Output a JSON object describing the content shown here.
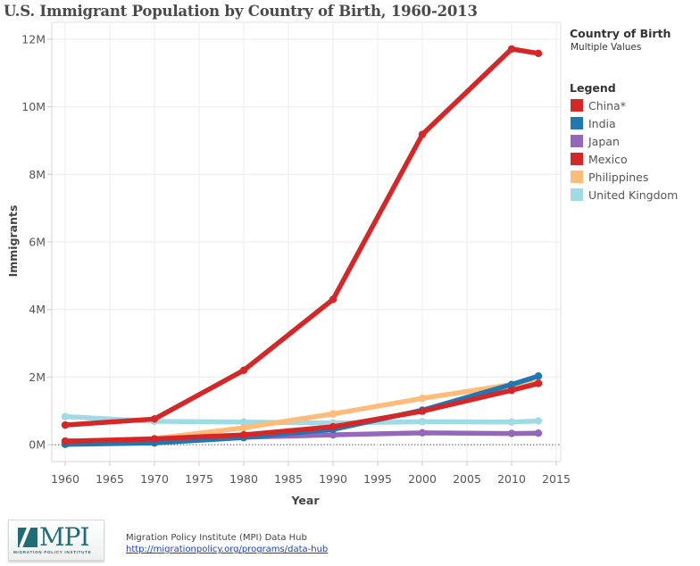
{
  "chart_data": {
    "type": "line",
    "title": "U.S. Immigrant Population by Country of Birth, 1960-2013",
    "xlabel": "Year",
    "ylabel": "Immigrants",
    "xlim": [
      1958.5,
      2015.5
    ],
    "ylim": [
      -0.5,
      12.5
    ],
    "x_ticks": [
      1960,
      1965,
      1970,
      1975,
      1980,
      1985,
      1990,
      1995,
      2000,
      2005,
      2010,
      2015
    ],
    "y_ticks": [
      0,
      2,
      4,
      6,
      8,
      10,
      12
    ],
    "y_tick_labels": [
      "0M",
      "2M",
      "4M",
      "6M",
      "8M",
      "10M",
      "12M"
    ],
    "y_unit": "millions",
    "grid": true,
    "zero_line": "dotted",
    "legend_placement": "right",
    "x": [
      1960,
      1970,
      1980,
      1990,
      2000,
      2010,
      2013
    ],
    "series": [
      {
        "name": "United Kingdom",
        "color": "#9fdae5",
        "values": [
          0.83,
          0.69,
          0.67,
          0.64,
          0.68,
          0.67,
          0.7
        ]
      },
      {
        "name": "Japan",
        "color": "#9467bd",
        "values": [
          0.11,
          0.12,
          0.22,
          0.29,
          0.35,
          0.33,
          0.34
        ]
      },
      {
        "name": "Philippines",
        "color": "#ffbb78",
        "values": [
          0.1,
          0.18,
          0.5,
          0.91,
          1.37,
          1.78,
          1.84
        ]
      },
      {
        "name": "India",
        "color": "#1f77b4",
        "values": [
          0.01,
          0.05,
          0.21,
          0.45,
          1.02,
          1.78,
          2.03
        ]
      },
      {
        "name": "China*",
        "color": "#d62728",
        "values": [
          0.1,
          0.17,
          0.29,
          0.53,
          0.99,
          1.61,
          1.81
        ]
      },
      {
        "name": "Mexico",
        "color": "#d62728",
        "values": [
          0.58,
          0.76,
          2.2,
          4.3,
          9.18,
          11.71,
          11.58
        ]
      }
    ]
  },
  "filter": {
    "heading": "Country of Birth",
    "value": "Multiple Values"
  },
  "legend": {
    "heading": "Legend",
    "items": [
      {
        "label": "China*",
        "color": "#d62728"
      },
      {
        "label": "India",
        "color": "#1f77b4"
      },
      {
        "label": "Japan",
        "color": "#9467bd"
      },
      {
        "label": "Mexico",
        "color": "#d62728"
      },
      {
        "label": "Philippines",
        "color": "#ffbb78"
      },
      {
        "label": "United Kingdom",
        "color": "#9fdae5"
      }
    ]
  },
  "footer": {
    "logo_text": "MPI",
    "logo_subtext": "MIGRATION POLICY INSTITUTE",
    "source_name": "Migration Policy Institute (MPI) Data Hub",
    "source_url": "http://migrationpolicy.org/programs/data-hub"
  }
}
